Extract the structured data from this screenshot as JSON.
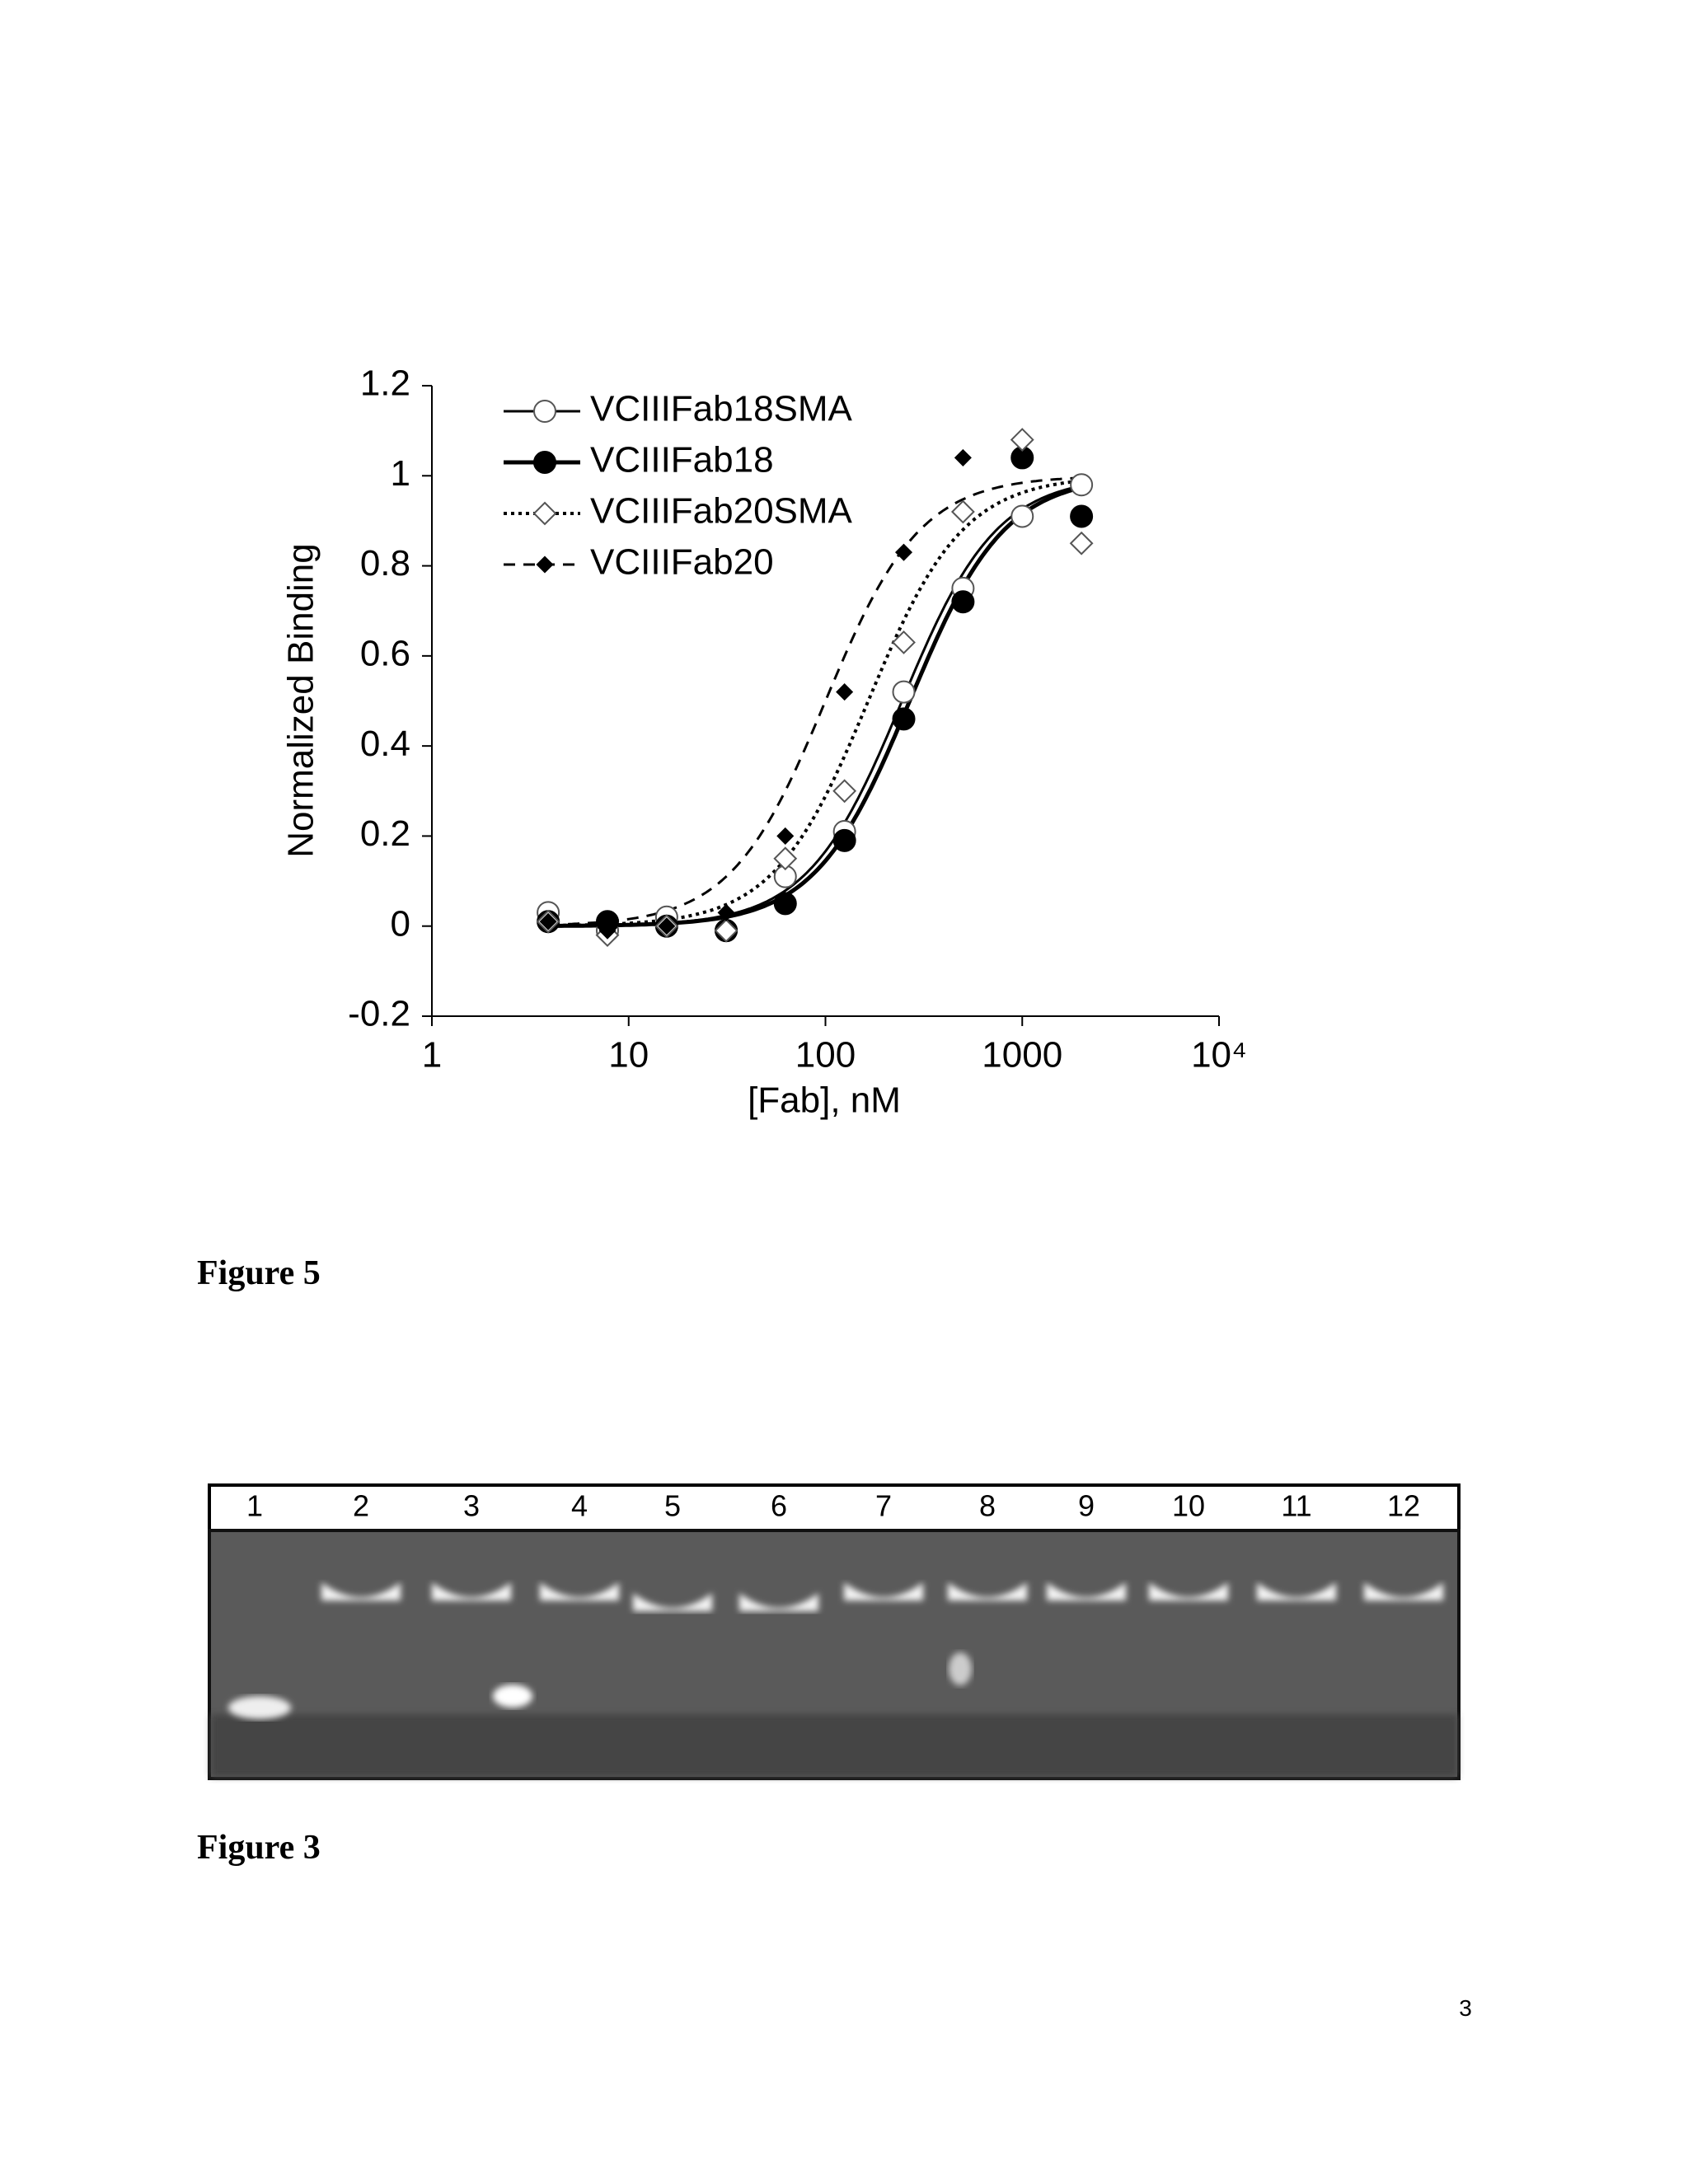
{
  "chart_data": {
    "type": "scatter",
    "x_label": "[Fab], nM",
    "y_label": "Normalized Binding",
    "x": [
      3.9,
      7.8,
      15.6,
      31.3,
      62.5,
      125,
      250,
      500,
      1000,
      2000
    ],
    "xlim": [
      1,
      10000
    ],
    "xticks": [
      1,
      10,
      100,
      1000,
      {
        "value": 10000,
        "label": "10⁴"
      }
    ],
    "xscale": "log",
    "ylim": [
      -0.2,
      1.2
    ],
    "yticks": [
      -0.2,
      0,
      0.2,
      0.4,
      0.6,
      0.8,
      1,
      1.2
    ],
    "legend": "upper left",
    "series": [
      {
        "name": "VCIIIFab18SMA",
        "color": "#000000",
        "marker": "circle-open",
        "line_style": "solid",
        "values": [
          0.03,
          -0.01,
          0.02,
          -0.01,
          0.11,
          0.21,
          0.52,
          0.75,
          0.91,
          0.98
        ],
        "curve": {
          "ec50": 245,
          "hill": 1.8
        }
      },
      {
        "name": "VCIIIFab18",
        "color": "#000000",
        "marker": "circle-filled",
        "line_style": "solid-thick",
        "values": [
          0.01,
          0.01,
          0.0,
          -0.01,
          0.05,
          0.19,
          0.46,
          0.72,
          1.04,
          0.91
        ],
        "curve": {
          "ec50": 268,
          "hill": 1.8
        }
      },
      {
        "name": "VCIIIFab20SMA",
        "color": "#000000",
        "marker": "diamond-open",
        "line_style": "dotted",
        "values": [
          0.01,
          -0.02,
          0.0,
          -0.01,
          0.15,
          0.3,
          0.63,
          0.92,
          1.08,
          0.85
        ],
        "curve": {
          "ec50": 165,
          "hill": 1.8
        }
      },
      {
        "name": "VCIIIFab20",
        "color": "#000000",
        "marker": "diamond-filled",
        "line_style": "dashed",
        "values": [
          0.01,
          -0.01,
          0.0,
          0.03,
          0.2,
          0.52,
          0.83,
          1.04,
          null,
          null
        ],
        "curve": {
          "ec50": 100,
          "hill": 1.8
        }
      }
    ]
  },
  "captions": [
    "Figure 5",
    "Figure 3"
  ],
  "gel": {
    "lanes": [
      "1",
      "2",
      "3",
      "4",
      "5",
      "6",
      "7",
      "8",
      "9",
      "10",
      "11",
      "12"
    ]
  },
  "page_number": "3"
}
